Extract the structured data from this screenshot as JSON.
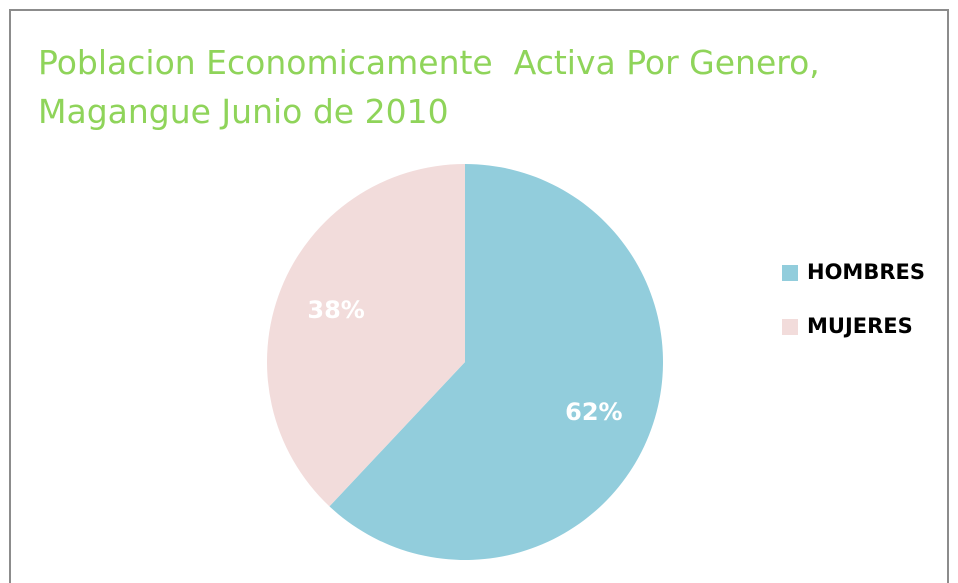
{
  "chart_data": {
    "type": "pie",
    "title": "Poblacion Economicamente  Activa Por Genero,\nMagangue Junio de 2010",
    "categories": [
      "HOMBRES",
      "MUJERES"
    ],
    "values": [
      62,
      38
    ],
    "value_labels": [
      "62%",
      "38%"
    ],
    "colors": [
      "#92cddc",
      "#f2dcdb"
    ]
  }
}
